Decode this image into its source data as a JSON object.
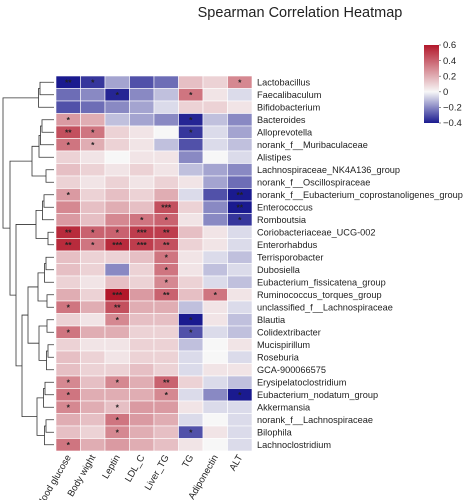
{
  "chart_data": {
    "type": "heatmap",
    "title": "Spearman Correlation Heatmap",
    "columns": [
      "Blood glucose",
      "Body wight",
      "Leptin",
      "LDL_C",
      "Liver_TG",
      "TG",
      "Adiponectin",
      "ALT"
    ],
    "rows": [
      "Lactobacillus",
      "Faecalibaculum",
      "Bifidobacterium",
      "Bacteroides",
      "Alloprevotella",
      "norank_f__Muribaculaceae",
      "Alistipes",
      "Lachnospiraceae_NK4A136_group",
      "norank_f__Oscillospiraceae",
      "norank_f__Eubacterium_coprostanoligenes_group",
      "Enterococcus",
      "Romboutsia",
      "Coriobacteriaceae_UCG-002",
      "Enterorhabdus",
      "Terrisporobacter",
      "Dubosiella",
      "Eubacterium_fissicatena_group",
      "Ruminococcus_torques_group",
      "unclassified_f__Lachnospiraceae",
      "Blautia",
      "Colidextribacter",
      "Mucispirillum",
      "Roseburia",
      "GCA-900066575",
      "Erysipelatoclostridium",
      "Eubacterium_nodatum_group",
      "Akkermansia",
      "norank_f__Lachnospiraceae",
      "Bilophila",
      "Lachnoclostridium"
    ],
    "values": [
      [
        -0.42,
        -0.35,
        -0.15,
        -0.3,
        -0.25,
        0.15,
        0.1,
        0.3
      ],
      [
        -0.25,
        -0.2,
        -0.38,
        -0.2,
        -0.1,
        0.35,
        0.05,
        -0.05
      ],
      [
        -0.3,
        -0.25,
        -0.2,
        -0.15,
        -0.05,
        0.1,
        0.1,
        0.05
      ],
      [
        0.25,
        0.2,
        -0.1,
        -0.15,
        -0.2,
        -0.38,
        -0.1,
        -0.2
      ],
      [
        0.45,
        0.35,
        0.1,
        0.05,
        0.0,
        -0.35,
        -0.05,
        -0.15
      ],
      [
        0.35,
        0.2,
        0.1,
        0.05,
        -0.1,
        -0.3,
        -0.05,
        -0.1
      ],
      [
        0.1,
        0.05,
        0.0,
        0.05,
        0.05,
        -0.2,
        0.0,
        -0.05
      ],
      [
        0.15,
        0.1,
        0.05,
        0.1,
        0.05,
        -0.1,
        -0.15,
        -0.2
      ],
      [
        0.1,
        0.05,
        0.1,
        0.05,
        0.1,
        0.05,
        -0.15,
        -0.25
      ],
      [
        0.25,
        0.1,
        0.15,
        0.1,
        0.2,
        -0.05,
        -0.3,
        -0.45
      ],
      [
        0.3,
        0.15,
        0.2,
        0.15,
        0.45,
        0.1,
        -0.2,
        -0.42
      ],
      [
        0.25,
        0.15,
        0.3,
        0.35,
        0.4,
        0.05,
        -0.2,
        -0.35
      ],
      [
        0.55,
        0.4,
        0.4,
        0.5,
        0.5,
        0.15,
        0.05,
        -0.05
      ],
      [
        0.55,
        0.35,
        0.55,
        0.5,
        0.45,
        0.1,
        0.05,
        -0.05
      ],
      [
        0.15,
        0.1,
        0.1,
        0.15,
        0.35,
        0.05,
        -0.05,
        -0.1
      ],
      [
        0.15,
        0.1,
        -0.2,
        0.1,
        0.35,
        0.05,
        -0.1,
        -0.05
      ],
      [
        0.1,
        0.05,
        0.15,
        0.1,
        0.3,
        0.1,
        -0.05,
        -0.1
      ],
      [
        0.2,
        0.1,
        0.6,
        0.25,
        0.4,
        0.15,
        0.35,
        0.05
      ],
      [
        0.35,
        0.2,
        0.45,
        0.2,
        0.2,
        -0.1,
        0.05,
        -0.05
      ],
      [
        0.1,
        0.05,
        0.3,
        0.15,
        0.15,
        -0.4,
        0.05,
        -0.1
      ],
      [
        0.35,
        0.2,
        0.2,
        0.1,
        0.1,
        -0.3,
        -0.05,
        -0.1
      ],
      [
        0.1,
        0.05,
        0.05,
        0.1,
        0.1,
        -0.1,
        0.0,
        0.05
      ],
      [
        0.15,
        0.1,
        0.05,
        0.1,
        0.1,
        -0.05,
        0.0,
        -0.05
      ],
      [
        0.15,
        0.1,
        0.1,
        0.15,
        0.1,
        -0.05,
        0.05,
        0.05
      ],
      [
        0.3,
        0.15,
        0.3,
        0.2,
        0.4,
        0.1,
        -0.05,
        -0.1
      ],
      [
        0.35,
        0.2,
        0.2,
        0.2,
        0.3,
        -0.05,
        -0.2,
        -0.4
      ],
      [
        0.3,
        0.2,
        0.15,
        0.25,
        0.25,
        0.05,
        -0.05,
        -0.05
      ],
      [
        0.2,
        0.15,
        0.35,
        0.25,
        0.2,
        -0.05,
        0.0,
        -0.05
      ],
      [
        0.15,
        0.1,
        0.3,
        0.2,
        0.15,
        -0.3,
        0.05,
        -0.05
      ],
      [
        0.35,
        0.2,
        0.25,
        0.2,
        0.15,
        0.05,
        0.0,
        -0.05
      ]
    ],
    "significance": [
      [
        "**",
        "*",
        "",
        "",
        "",
        "",
        "",
        "*"
      ],
      [
        "",
        "",
        "*",
        "",
        "",
        "*",
        "",
        ""
      ],
      [
        "",
        "",
        "",
        "",
        "",
        "",
        "",
        ""
      ],
      [
        "*",
        "",
        "",
        "",
        "",
        "*",
        "",
        ""
      ],
      [
        "**",
        "*",
        "",
        "",
        "",
        "*",
        "",
        ""
      ],
      [
        "*",
        "*",
        "",
        "",
        "",
        "",
        "",
        ""
      ],
      [
        "",
        "",
        "",
        "",
        "",
        "",
        "",
        ""
      ],
      [
        "",
        "",
        "",
        "",
        "",
        "",
        "",
        ""
      ],
      [
        "",
        "",
        "",
        "",
        "",
        "",
        "",
        ""
      ],
      [
        "*",
        "",
        "",
        "",
        "",
        "",
        "",
        "**"
      ],
      [
        "",
        "",
        "",
        "",
        "***",
        "",
        "",
        "**"
      ],
      [
        "",
        "",
        "",
        "*",
        "*",
        "",
        "",
        "*"
      ],
      [
        "**",
        "*",
        "*",
        "***",
        "**",
        "",
        "",
        ""
      ],
      [
        "**",
        "*",
        "***",
        "***",
        "**",
        "",
        "",
        ""
      ],
      [
        "",
        "",
        "",
        "",
        "*",
        "",
        "",
        ""
      ],
      [
        "",
        "",
        "",
        "",
        "*",
        "",
        "",
        ""
      ],
      [
        "",
        "",
        "",
        "",
        "*",
        "",
        "",
        ""
      ],
      [
        "",
        "",
        "***",
        "",
        "**",
        "",
        "*",
        ""
      ],
      [
        "*",
        "",
        "**",
        "",
        "",
        "",
        "",
        ""
      ],
      [
        "",
        "",
        "*",
        "",
        "",
        "*",
        "",
        ""
      ],
      [
        "*",
        "",
        "",
        "",
        "",
        "*",
        "",
        ""
      ],
      [
        "",
        "",
        "",
        "",
        "",
        "",
        "",
        ""
      ],
      [
        "",
        "",
        "",
        "",
        "",
        "",
        "",
        ""
      ],
      [
        "",
        "",
        "",
        "",
        "",
        "",
        "",
        ""
      ],
      [
        "*",
        "",
        "*",
        "",
        "**",
        "",
        "",
        ""
      ],
      [
        "*",
        "",
        "",
        "",
        "*",
        "",
        "",
        "*"
      ],
      [
        "*",
        "",
        "*",
        "",
        "",
        "",
        "",
        ""
      ],
      [
        "",
        "",
        "*",
        "",
        "",
        "",
        "",
        ""
      ],
      [
        "",
        "",
        "*",
        "",
        "",
        "*",
        "",
        ""
      ],
      [
        "*",
        "",
        "",
        "",
        "",
        "",
        "",
        ""
      ]
    ],
    "colorbar": {
      "min": -0.4,
      "max": 0.6,
      "ticks": [
        0.6,
        0.4,
        0.2,
        0,
        -0.2,
        -0.4
      ],
      "tick_labels": [
        "0.6",
        "0.4",
        "0.2",
        "0",
        "−0.2",
        "−0.4"
      ],
      "low_color": "#1a1a8f",
      "mid_color": "#f7f7f7",
      "high_color": "#b2182b"
    },
    "legend_position": "top-right",
    "row_dendrogram": true
  }
}
